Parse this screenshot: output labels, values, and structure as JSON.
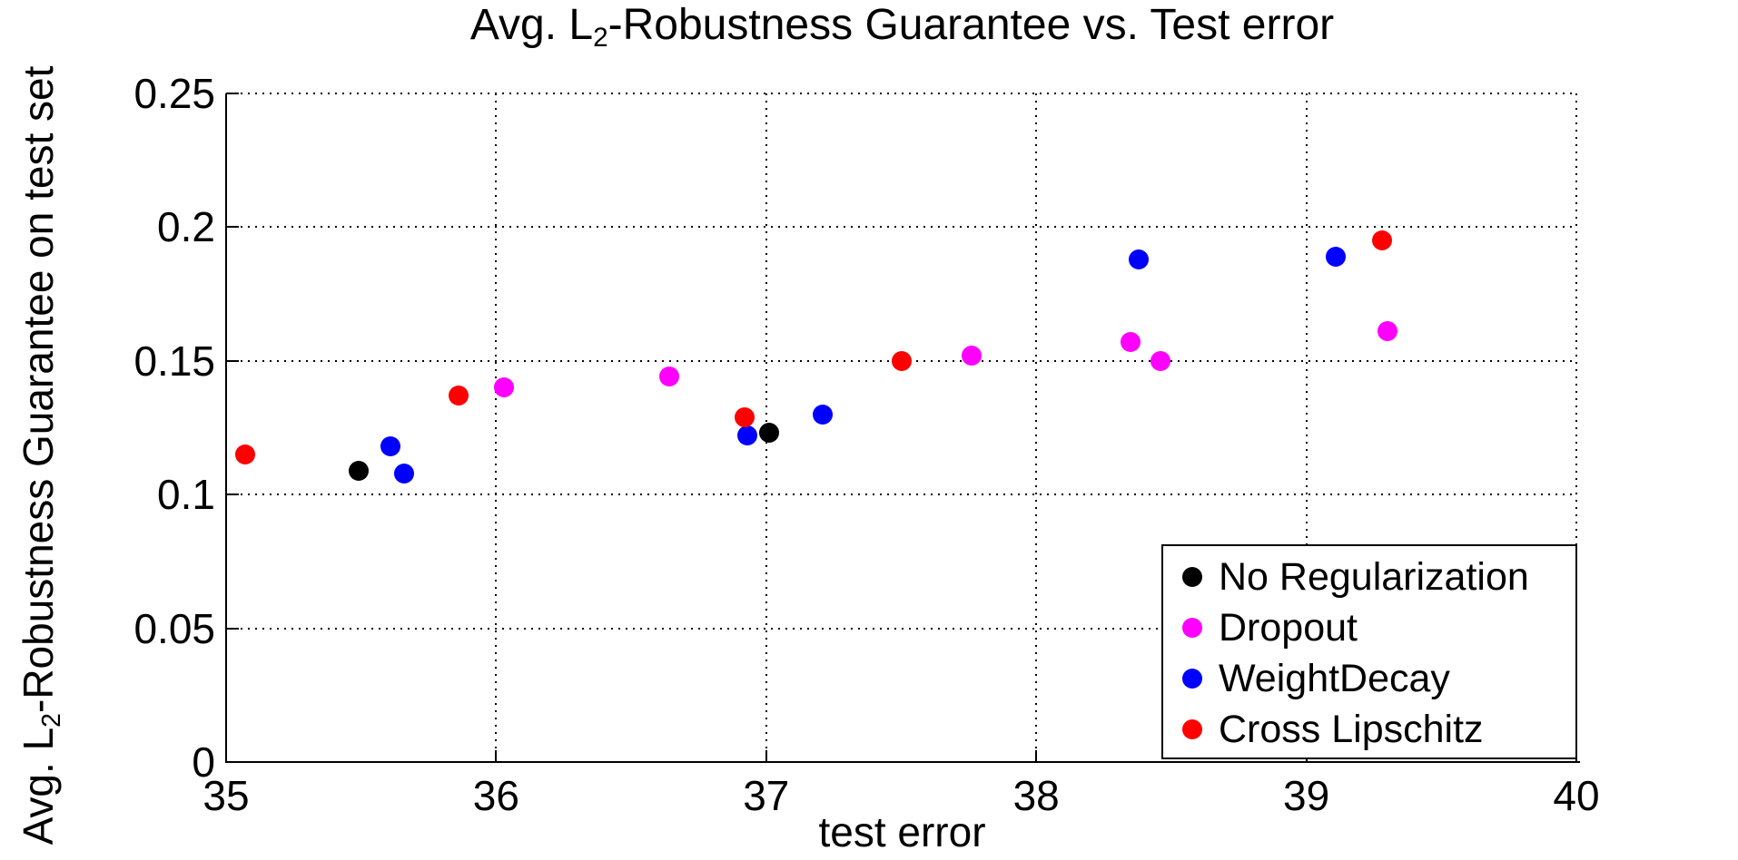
{
  "title": {
    "prefix": "Avg. L",
    "sub": "2",
    "suffix": "-Robustness Guarantee vs. Test error"
  },
  "chart_data": {
    "type": "scatter",
    "title": "Avg. L2-Robustness Guarantee vs. Test error",
    "xlabel": "test error",
    "ylabel": "Avg. L2-Robustness Guarantee on test set",
    "ylabel_parts": {
      "prefix": "Avg. L",
      "sub": "2",
      "suffix": "-Robustness Guarantee on test set"
    },
    "xlim": [
      35,
      40
    ],
    "ylim": [
      0,
      0.25
    ],
    "xticks": [
      35,
      36,
      37,
      38,
      39,
      40
    ],
    "xtick_labels": [
      "35",
      "36",
      "37",
      "38",
      "39",
      "40"
    ],
    "yticks": [
      0,
      0.05,
      0.1,
      0.15,
      0.2,
      0.25
    ],
    "ytick_labels": [
      "0",
      "0.05",
      "0.1",
      "0.15",
      "0.2",
      "0.25"
    ],
    "grid": true,
    "grid_style": "dotted",
    "marker": "circle",
    "legend_position": "bottom-right",
    "series": [
      {
        "name": "No Regularization",
        "color": "#000000",
        "points": [
          [
            35.49,
            0.109
          ],
          [
            37.01,
            0.123
          ]
        ]
      },
      {
        "name": "Dropout",
        "color": "#ff00ff",
        "points": [
          [
            36.03,
            0.14
          ],
          [
            36.64,
            0.144
          ],
          [
            37.76,
            0.152
          ],
          [
            38.35,
            0.157
          ],
          [
            38.46,
            0.15
          ],
          [
            39.3,
            0.161
          ]
        ]
      },
      {
        "name": "WeightDecay",
        "color": "#0000ff",
        "points": [
          [
            35.61,
            0.118
          ],
          [
            35.66,
            0.108
          ],
          [
            36.93,
            0.122
          ],
          [
            37.21,
            0.13
          ],
          [
            38.38,
            0.188
          ],
          [
            39.11,
            0.189
          ]
        ]
      },
      {
        "name": "Cross Lipschitz",
        "color": "#ff0000",
        "points": [
          [
            35.07,
            0.115
          ],
          [
            35.86,
            0.137
          ],
          [
            36.92,
            0.129
          ],
          [
            37.5,
            0.15
          ],
          [
            39.28,
            0.195
          ]
        ]
      }
    ],
    "draw_order": [
      "Dropout",
      "WeightDecay",
      "No Regularization",
      "Cross Lipschitz"
    ]
  }
}
